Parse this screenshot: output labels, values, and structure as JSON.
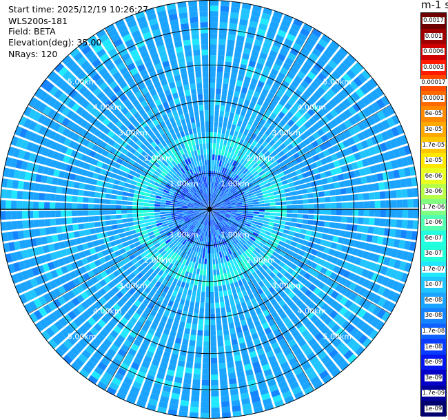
{
  "header": {
    "start_time": "Start time: 2025/12/19 10:26:27",
    "instrument": "WLS200s-181",
    "field": "Field: BETA",
    "elevation": "Elevation(deg): 35.00",
    "nrays": "NRays: 120"
  },
  "colorbar": {
    "title": "m-1 sr-1",
    "ticks": [
      {
        "label": "0.0017",
        "color": "#6e0000"
      },
      {
        "label": "0.001",
        "color": "#9e0000"
      },
      {
        "label": "0.0006",
        "color": "#d00000"
      },
      {
        "label": "0.0003",
        "color": "#ff1a00"
      },
      {
        "label": "0.00017",
        "color": "#ff4a00"
      },
      {
        "label": "0.0001",
        "color": "#ff6a00"
      },
      {
        "label": "6e-05",
        "color": "#ff8a00"
      },
      {
        "label": "3e-05",
        "color": "#ffa800"
      },
      {
        "label": "1.7e-05",
        "color": "#ffc800"
      },
      {
        "label": "1e-05",
        "color": "#ffe800"
      },
      {
        "label": "6e-06",
        "color": "#e8ff20"
      },
      {
        "label": "3e-06",
        "color": "#b8ff48"
      },
      {
        "label": "1.7e-06",
        "color": "#80ff80"
      },
      {
        "label": "1e-06",
        "color": "#50ffb0"
      },
      {
        "label": "6e-07",
        "color": "#20ffe0"
      },
      {
        "label": "3e-07",
        "color": "#20ffd8"
      },
      {
        "label": "1.7e-07",
        "color": "#20e8ff"
      },
      {
        "label": "1e-07",
        "color": "#20c4ff"
      },
      {
        "label": "6e-08",
        "color": "#1aa4ff"
      },
      {
        "label": "3e-08",
        "color": "#1484ff"
      },
      {
        "label": "1.7e-08",
        "color": "#0e60ff"
      },
      {
        "label": "1e-08",
        "color": "#0a3cff"
      },
      {
        "label": "6e-09",
        "color": "#0616ee"
      },
      {
        "label": "3e-09",
        "color": "#0400c8"
      },
      {
        "label": "1.7e-09",
        "color": "#02009a"
      },
      {
        "label": "1e-09",
        "color": "#00006e"
      }
    ]
  },
  "chart_data": {
    "type": "heatmap",
    "projection": "polar PPI",
    "field": "BETA",
    "elevation_deg": 35.0,
    "n_rays": 120,
    "max_range_km": 5.8,
    "range_rings_km": [
      1,
      2,
      3,
      4,
      5
    ],
    "ring_labels": [
      "1.00km",
      "2.00km",
      "3.00km",
      "4.00km",
      "5.00km"
    ],
    "dominant_value_range": [
      "1e-08",
      "1e-07"
    ],
    "enhanced_band_km": [
      1.5,
      2.2
    ],
    "enhanced_value": "3e-07",
    "near_field_km": 1.0,
    "near_field_values": [
      "1e-09",
      "1e-08"
    ],
    "grid": true
  }
}
